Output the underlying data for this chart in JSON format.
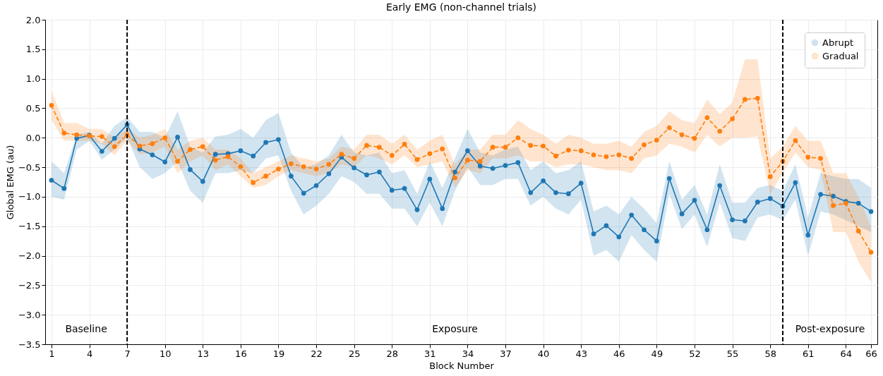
{
  "chart_data": {
    "type": "line",
    "title": "Early EMG (non-channel trials)",
    "xlabel": "Block Number",
    "ylabel": "Global EMG (au)",
    "x": [
      1,
      2,
      3,
      4,
      5,
      6,
      7,
      8,
      9,
      10,
      11,
      12,
      13,
      14,
      15,
      16,
      17,
      18,
      19,
      20,
      21,
      22,
      23,
      24,
      25,
      26,
      27,
      28,
      29,
      30,
      31,
      32,
      33,
      34,
      35,
      36,
      37,
      38,
      39,
      40,
      41,
      42,
      43,
      44,
      45,
      46,
      47,
      48,
      49,
      50,
      51,
      52,
      53,
      54,
      55,
      56,
      57,
      58,
      59,
      60,
      61,
      62,
      63,
      64,
      65,
      66
    ],
    "series": [
      {
        "name": "Abrupt",
        "color": "#1f77b4",
        "line_style": "solid",
        "values": [
          -0.72,
          -0.86,
          -0.01,
          0.04,
          -0.23,
          -0.01,
          0.22,
          -0.19,
          -0.29,
          -0.41,
          0.01,
          -0.54,
          -0.74,
          -0.28,
          -0.27,
          -0.22,
          -0.31,
          -0.08,
          -0.03,
          -0.65,
          -0.94,
          -0.81,
          -0.61,
          -0.33,
          -0.51,
          -0.63,
          -0.58,
          -0.89,
          -0.86,
          -1.22,
          -0.7,
          -1.2,
          -0.58,
          -0.22,
          -0.48,
          -0.52,
          -0.47,
          -0.42,
          -0.93,
          -0.73,
          -0.93,
          -0.95,
          -0.77,
          -1.63,
          -1.49,
          -1.68,
          -1.31,
          -1.56,
          -1.75,
          -0.69,
          -1.29,
          -1.06,
          -1.56,
          -0.81,
          -1.39,
          -1.41,
          -1.09,
          -1.03,
          -1.16,
          -0.76,
          -1.65,
          -0.96,
          -0.99,
          -1.08,
          -1.11,
          -1.25
        ],
        "upper": [
          -0.4,
          -0.6,
          0.05,
          0.1,
          -0.1,
          0.2,
          0.35,
          0.1,
          0.1,
          0.0,
          0.45,
          -0.15,
          -0.25,
          0.02,
          0.05,
          0.15,
          0.0,
          0.3,
          0.42,
          -0.25,
          -0.5,
          -0.45,
          -0.3,
          0.05,
          -0.25,
          -0.3,
          -0.25,
          -0.6,
          -0.55,
          -0.95,
          -0.4,
          -0.85,
          -0.35,
          0.15,
          -0.25,
          -0.3,
          -0.2,
          -0.15,
          -0.55,
          -0.4,
          -0.6,
          -0.55,
          -0.4,
          -1.25,
          -1.15,
          -1.3,
          -1.0,
          -1.2,
          -1.45,
          -0.4,
          -1.05,
          -0.8,
          -1.3,
          -0.45,
          -1.1,
          -1.1,
          -0.85,
          -0.8,
          -0.9,
          -0.45,
          -1.35,
          -0.6,
          -0.65,
          -0.7,
          -0.7,
          -0.85
        ],
        "lower": [
          -1.0,
          -1.05,
          -0.2,
          -0.05,
          -0.37,
          -0.2,
          0.0,
          -0.5,
          -0.7,
          -0.6,
          -0.4,
          -0.9,
          -1.1,
          -0.6,
          -0.6,
          -0.55,
          -0.6,
          -0.35,
          -0.3,
          -0.9,
          -1.3,
          -1.15,
          -0.95,
          -0.65,
          -0.75,
          -0.95,
          -0.95,
          -1.2,
          -1.2,
          -1.5,
          -1.1,
          -1.5,
          -0.9,
          -0.5,
          -0.8,
          -0.8,
          -0.7,
          -0.7,
          -1.15,
          -1.0,
          -1.2,
          -1.3,
          -1.05,
          -2.0,
          -1.9,
          -2.1,
          -1.65,
          -1.9,
          -2.1,
          -0.95,
          -1.55,
          -1.3,
          -1.85,
          -1.1,
          -1.7,
          -1.75,
          -1.35,
          -1.3,
          -1.4,
          -1.05,
          -2.0,
          -1.25,
          -1.3,
          -1.4,
          -1.5,
          -1.6
        ]
      },
      {
        "name": "Gradual",
        "color": "#ff7f0e",
        "line_style": "dashed",
        "values": [
          0.55,
          0.08,
          0.05,
          0.03,
          0.02,
          -0.15,
          0.05,
          -0.14,
          -0.1,
          0.0,
          -0.4,
          -0.2,
          -0.15,
          -0.38,
          -0.32,
          -0.49,
          -0.76,
          -0.65,
          -0.53,
          -0.44,
          -0.49,
          -0.53,
          -0.45,
          -0.28,
          -0.35,
          -0.13,
          -0.16,
          -0.3,
          -0.11,
          -0.37,
          -0.27,
          -0.19,
          -0.68,
          -0.38,
          -0.4,
          -0.16,
          -0.16,
          0.0,
          -0.13,
          -0.14,
          -0.31,
          -0.21,
          -0.22,
          -0.29,
          -0.32,
          -0.29,
          -0.35,
          -0.12,
          -0.04,
          0.17,
          0.05,
          -0.01,
          0.34,
          0.11,
          0.32,
          0.65,
          0.67,
          -0.66,
          -0.4,
          -0.05,
          -0.33,
          -0.35,
          -1.15,
          -1.11,
          -1.58,
          -1.94
        ],
        "upper": [
          0.8,
          0.25,
          0.25,
          0.15,
          0.15,
          0.0,
          0.15,
          0.0,
          0.05,
          0.15,
          -0.2,
          -0.05,
          0.0,
          -0.2,
          -0.2,
          -0.35,
          -0.6,
          -0.5,
          -0.4,
          -0.3,
          -0.35,
          -0.4,
          -0.35,
          -0.15,
          -0.2,
          0.05,
          0.05,
          -0.1,
          0.05,
          -0.2,
          -0.05,
          0.05,
          -0.45,
          -0.2,
          -0.2,
          0.05,
          0.05,
          0.3,
          0.15,
          0.05,
          -0.1,
          0.05,
          0.0,
          -0.1,
          -0.1,
          -0.05,
          -0.15,
          0.1,
          0.2,
          0.45,
          0.3,
          0.25,
          0.65,
          0.4,
          0.6,
          1.33,
          1.33,
          -0.35,
          -0.15,
          0.2,
          -0.05,
          -0.05,
          -0.6,
          -0.6,
          -1.0,
          -1.5
        ],
        "lower": [
          0.3,
          -0.05,
          -0.05,
          -0.05,
          -0.1,
          -0.3,
          -0.05,
          -0.28,
          -0.25,
          -0.15,
          -0.6,
          -0.4,
          -0.3,
          -0.55,
          -0.45,
          -0.65,
          -0.85,
          -0.8,
          -0.65,
          -0.55,
          -0.6,
          -0.65,
          -0.6,
          -0.45,
          -0.5,
          -0.3,
          -0.35,
          -0.45,
          -0.3,
          -0.5,
          -0.45,
          -0.4,
          -0.85,
          -0.55,
          -0.6,
          -0.35,
          -0.35,
          -0.3,
          -0.4,
          -0.4,
          -0.5,
          -0.45,
          -0.45,
          -0.5,
          -0.55,
          -0.55,
          -0.6,
          -0.35,
          -0.3,
          -0.1,
          -0.15,
          -0.25,
          0.05,
          -0.15,
          0.0,
          0.0,
          0.02,
          -0.95,
          -0.6,
          -0.25,
          -0.5,
          -0.55,
          -1.6,
          -1.6,
          -2.1,
          -2.45
        ]
      }
    ],
    "xlim": [
      0.5,
      66.5
    ],
    "xticks": [
      1,
      4,
      7,
      10,
      13,
      16,
      19,
      22,
      25,
      28,
      31,
      34,
      37,
      40,
      43,
      46,
      49,
      52,
      55,
      58,
      61,
      64,
      66
    ],
    "ylim": [
      -3.5,
      2.0
    ],
    "yticks": [
      -3.5,
      {
        "value": -3,
        "label": "−3.0"
      },
      -2.5,
      {
        "value": -2,
        "label": "−2.0"
      },
      -1.5,
      {
        "value": -1,
        "label": "−1.0"
      },
      -0.5,
      {
        "value": 0,
        "label": "0.0"
      },
      0.5,
      {
        "value": 1,
        "label": "1.0"
      },
      1.5,
      {
        "value": 2,
        "label": "2.0"
      }
    ],
    "ref_lines": [
      {
        "axis": "x",
        "value": 7,
        "color": "#000000",
        "line_style": "dashed"
      },
      {
        "axis": "x",
        "value": 59,
        "color": "#000000",
        "line_style": "dashed"
      }
    ],
    "annotations": [
      "Baseline",
      "Exposure",
      "Post-exposure"
    ],
    "grid": true,
    "legend": "top right",
    "marker": "circle"
  }
}
